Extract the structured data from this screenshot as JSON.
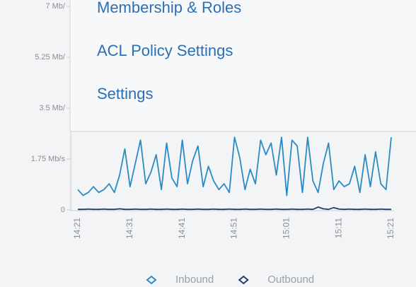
{
  "menu": {
    "items": [
      "Membership & Roles",
      "ACL Policy Settings",
      "Settings"
    ]
  },
  "chart_data": {
    "type": "line",
    "categories": [
      "14:21",
      null,
      null,
      null,
      null,
      null,
      null,
      null,
      null,
      null,
      "14:31",
      null,
      null,
      null,
      null,
      null,
      null,
      null,
      null,
      null,
      "14:41",
      null,
      null,
      null,
      null,
      null,
      null,
      null,
      null,
      null,
      "14:51",
      null,
      null,
      null,
      null,
      null,
      null,
      null,
      null,
      null,
      "15:01",
      null,
      null,
      null,
      null,
      null,
      null,
      null,
      null,
      null,
      "15:11",
      null,
      null,
      null,
      null,
      null,
      null,
      null,
      null,
      null,
      "15:21"
    ],
    "series": [
      {
        "name": "Inbound",
        "color": "#2a8bc4",
        "values": [
          0.7,
          0.5,
          0.6,
          0.8,
          0.6,
          0.7,
          0.9,
          0.6,
          1.2,
          2.1,
          0.8,
          1.6,
          2.4,
          0.9,
          1.3,
          1.9,
          0.7,
          2.3,
          1.1,
          0.8,
          2.4,
          0.9,
          1.7,
          2.2,
          0.8,
          1.5,
          1.0,
          0.7,
          0.9,
          0.6,
          2.5,
          1.8,
          0.7,
          1.4,
          0.9,
          2.4,
          1.9,
          2.3,
          1.2,
          2.5,
          0.5,
          2.4,
          2.2,
          0.6,
          2.5,
          1.0,
          0.6,
          1.6,
          2.3,
          0.7,
          1.0,
          0.8,
          0.9,
          1.5,
          0.6,
          1.9,
          0.8,
          2.0,
          0.9,
          0.7,
          2.5
        ]
      },
      {
        "name": "Outbound",
        "color": "#1d3f6e",
        "values": [
          0.02,
          0.02,
          0.03,
          0.02,
          0.02,
          0.03,
          0.02,
          0.02,
          0.04,
          0.02,
          0.02,
          0.03,
          0.02,
          0.02,
          0.03,
          0.02,
          0.02,
          0.03,
          0.02,
          0.02,
          0.03,
          0.02,
          0.02,
          0.03,
          0.02,
          0.02,
          0.03,
          0.02,
          0.02,
          0.03,
          0.02,
          0.02,
          0.03,
          0.02,
          0.02,
          0.03,
          0.02,
          0.02,
          0.03,
          0.02,
          0.02,
          0.03,
          0.02,
          0.02,
          0.03,
          0.02,
          0.1,
          0.04,
          0.02,
          0.08,
          0.03,
          0.02,
          0.03,
          0.02,
          0.02,
          0.03,
          0.02,
          0.02,
          0.03,
          0.02,
          0.02
        ]
      }
    ],
    "ylim": [
      0,
      7
    ],
    "yticks": [
      0,
      {
        "value": 1.75,
        "label": "1.75 Mb/s"
      },
      {
        "value": 3.5,
        "label": "3.5 Mb/"
      },
      {
        "value": 5.25,
        "label": "5.25 Mb/"
      },
      {
        "value": 7,
        "label": "7 Mb/"
      }
    ]
  }
}
